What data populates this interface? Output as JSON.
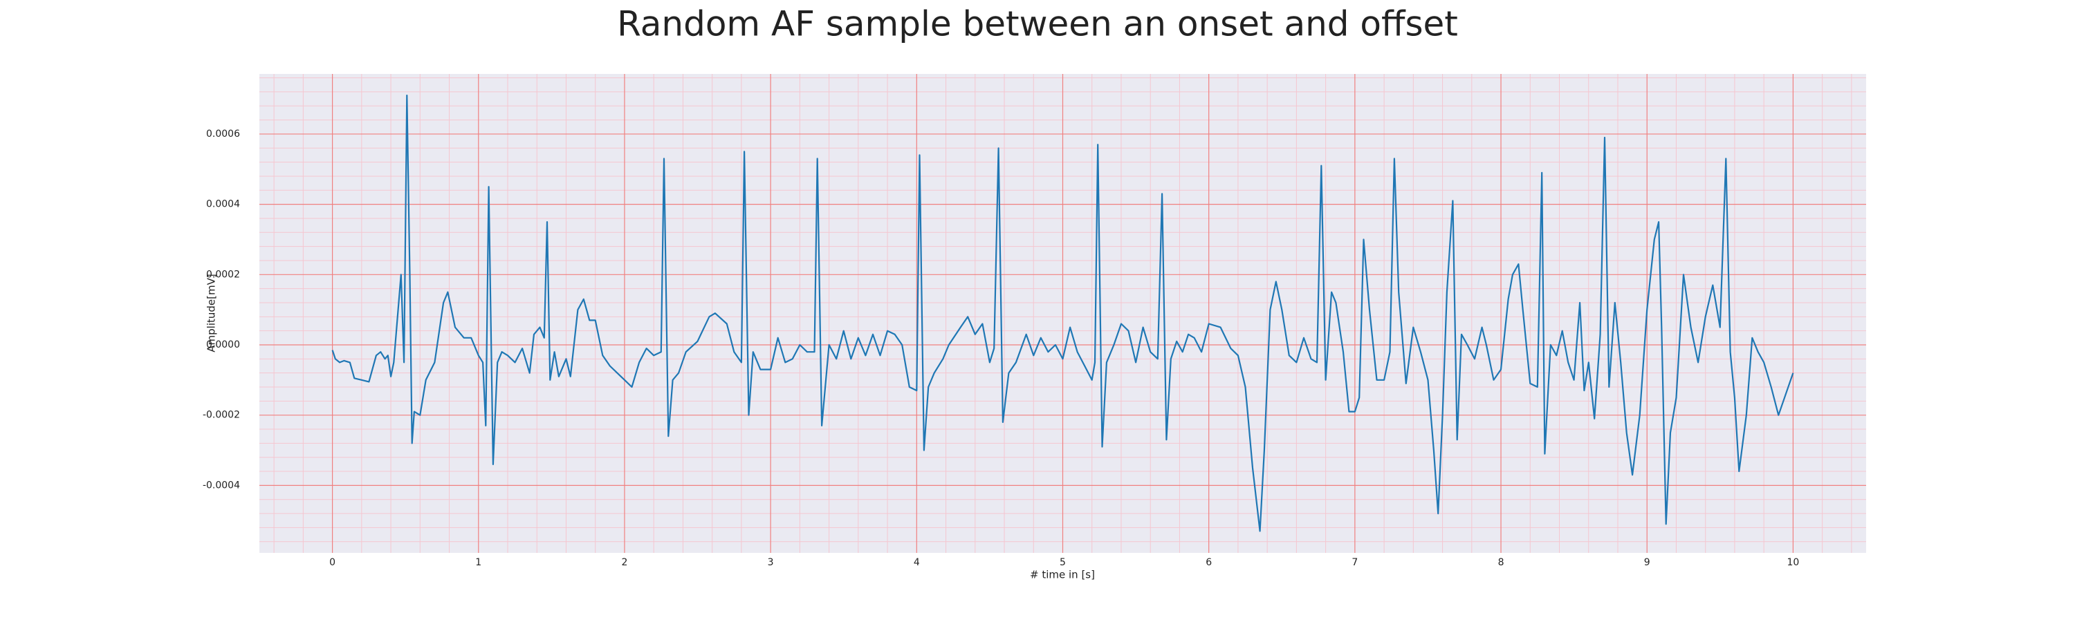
{
  "chart_data": {
    "type": "line",
    "title": "Random AF sample between an onset and offset",
    "xlabel": "# time in [s]",
    "ylabel": "Amplitude[mV]",
    "x": [
      0,
      0.02,
      0.05,
      0.08,
      0.12,
      0.15,
      0.2,
      0.25,
      0.3,
      0.33,
      0.36,
      0.38,
      0.4,
      0.42,
      0.45,
      0.47,
      0.49,
      0.51,
      0.53,
      0.545,
      0.56,
      0.6,
      0.64,
      0.7,
      0.76,
      0.79,
      0.84,
      0.9,
      0.95,
      1.0,
      1.03,
      1.05,
      1.07,
      1.1,
      1.13,
      1.16,
      1.2,
      1.25,
      1.3,
      1.35,
      1.38,
      1.42,
      1.45,
      1.47,
      1.49,
      1.52,
      1.55,
      1.6,
      1.63,
      1.68,
      1.72,
      1.76,
      1.8,
      1.85,
      1.9,
      1.95,
      2.0,
      2.05,
      2.1,
      2.15,
      2.2,
      2.25,
      2.27,
      2.3,
      2.33,
      2.37,
      2.42,
      2.5,
      2.58,
      2.62,
      2.7,
      2.75,
      2.8,
      2.82,
      2.85,
      2.88,
      2.93,
      3.0,
      3.05,
      3.1,
      3.15,
      3.2,
      3.25,
      3.3,
      3.32,
      3.35,
      3.4,
      3.45,
      3.5,
      3.55,
      3.6,
      3.65,
      3.7,
      3.75,
      3.8,
      3.85,
      3.9,
      3.95,
      4.0,
      4.02,
      4.05,
      4.08,
      4.12,
      4.18,
      4.22,
      4.3,
      4.35,
      4.4,
      4.45,
      4.5,
      4.53,
      4.56,
      4.59,
      4.63,
      4.68,
      4.75,
      4.8,
      4.85,
      4.9,
      4.95,
      5.0,
      5.05,
      5.1,
      5.15,
      5.2,
      5.22,
      5.24,
      5.27,
      5.3,
      5.35,
      5.4,
      5.45,
      5.5,
      5.55,
      5.6,
      5.65,
      5.68,
      5.71,
      5.74,
      5.78,
      5.82,
      5.86,
      5.9,
      5.95,
      6.0,
      6.08,
      6.15,
      6.2,
      6.25,
      6.3,
      6.35,
      6.38,
      6.42,
      6.46,
      6.5,
      6.55,
      6.6,
      6.65,
      6.7,
      6.74,
      6.77,
      6.8,
      6.84,
      6.87,
      6.92,
      6.96,
      7.0,
      7.03,
      7.06,
      7.1,
      7.15,
      7.2,
      7.24,
      7.27,
      7.3,
      7.35,
      7.4,
      7.45,
      7.5,
      7.54,
      7.57,
      7.6,
      7.63,
      7.67,
      7.7,
      7.73,
      7.77,
      7.82,
      7.87,
      7.9,
      7.95,
      8.0,
      8.05,
      8.08,
      8.12,
      8.15,
      8.2,
      8.25,
      8.28,
      8.3,
      8.34,
      8.38,
      8.42,
      8.46,
      8.5,
      8.54,
      8.57,
      8.6,
      8.64,
      8.68,
      8.71,
      8.74,
      8.78,
      8.82,
      8.86,
      8.9,
      8.95,
      9.0,
      9.05,
      9.08,
      9.1,
      9.13,
      9.16,
      9.2,
      9.25,
      9.3,
      9.35,
      9.4,
      9.45,
      9.5,
      9.54,
      9.57,
      9.6,
      9.63,
      9.68,
      9.72,
      9.76,
      9.8,
      9.85,
      9.9,
      10.0
    ],
    "series": [
      {
        "color": "#1f77b4",
        "values": [
          -1.5e-05,
          -4e-05,
          -5e-05,
          -4.5e-05,
          -5e-05,
          -9.5e-05,
          -0.0001,
          -0.000105,
          -3e-05,
          -2e-05,
          -4e-05,
          -3e-05,
          -9e-05,
          -5e-05,
          0.0001,
          0.0002,
          -5e-05,
          0.00071,
          0.0002,
          -0.00028,
          -0.00019,
          -0.0002,
          -0.0001,
          -5e-05,
          0.00012,
          0.00015,
          5e-05,
          2e-05,
          2e-05,
          -3e-05,
          -5e-05,
          -0.00023,
          0.00045,
          -0.00034,
          -5e-05,
          -2e-05,
          -3e-05,
          -5e-05,
          -1e-05,
          -8e-05,
          3e-05,
          5e-05,
          2e-05,
          0.00035,
          -0.0001,
          -2e-05,
          -9e-05,
          -4e-05,
          -9e-05,
          0.0001,
          0.00013,
          7e-05,
          7e-05,
          -3e-05,
          -6e-05,
          -8e-05,
          -0.0001,
          -0.00012,
          -5e-05,
          -1e-05,
          -3e-05,
          -2e-05,
          0.00053,
          -0.00026,
          -0.0001,
          -8e-05,
          -2e-05,
          1e-05,
          8e-05,
          9e-05,
          6e-05,
          -2e-05,
          -5e-05,
          0.00055,
          -0.0002,
          -2e-05,
          -7e-05,
          -7e-05,
          2e-05,
          -5e-05,
          -4e-05,
          0,
          -2e-05,
          -2e-05,
          0.00053,
          -0.00023,
          0,
          -4e-05,
          4e-05,
          -4e-05,
          2e-05,
          -3e-05,
          3e-05,
          -3e-05,
          4e-05,
          3e-05,
          0,
          -0.00012,
          -0.00013,
          0.00054,
          -0.0003,
          -0.00012,
          -8e-05,
          -4e-05,
          0,
          5e-05,
          8e-05,
          3e-05,
          6e-05,
          -5e-05,
          -1e-05,
          0.00056,
          -0.00022,
          -8e-05,
          -5e-05,
          3e-05,
          -3e-05,
          2e-05,
          -2e-05,
          0,
          -4e-05,
          5e-05,
          -2e-05,
          -6e-05,
          -0.0001,
          -5e-05,
          0.00057,
          -0.00029,
          -5e-05,
          0,
          6e-05,
          4e-05,
          -5e-05,
          5e-05,
          -2e-05,
          -4e-05,
          0.00043,
          -0.00027,
          -4e-05,
          1e-05,
          -2e-05,
          3e-05,
          2e-05,
          -2e-05,
          6e-05,
          5e-05,
          -1e-05,
          -3e-05,
          -0.00012,
          -0.00035,
          -0.00053,
          -0.0003,
          0.0001,
          0.00018,
          0.0001,
          -3e-05,
          -5e-05,
          2e-05,
          -4e-05,
          -5e-05,
          0.00051,
          -0.0001,
          0.00015,
          0.00012,
          -2e-05,
          -0.00019,
          -0.00019,
          -0.00015,
          0.0003,
          0.0001,
          -0.0001,
          -0.0001,
          -2e-05,
          0.00053,
          0.00015,
          -0.00011,
          5e-05,
          -2e-05,
          -0.0001,
          -0.0003,
          -0.00048,
          -0.0002,
          0.00015,
          0.00041,
          -0.00027,
          3e-05,
          0,
          -4e-05,
          5e-05,
          0,
          -0.0001,
          -7e-05,
          0.00013,
          0.0002,
          0.00023,
          0.0001,
          -0.00011,
          -0.00012,
          0.00049,
          -0.00031,
          0,
          -3e-05,
          4e-05,
          -5e-05,
          -0.0001,
          0.00012,
          -0.00013,
          -5e-05,
          -0.00021,
          3e-05,
          0.00059,
          -0.00012,
          0.00012,
          -5e-05,
          -0.00025,
          -0.00037,
          -0.0002,
          0.0001,
          0.0003,
          0.00035,
          5e-05,
          -0.00051,
          -0.00025,
          -0.00015,
          0.0002,
          5e-05,
          -5e-05,
          8e-05,
          0.00017,
          5e-05,
          0.00053,
          -2e-05,
          -0.00015,
          -0.00036,
          -0.0002,
          2e-05,
          -2e-05,
          -5e-05,
          -0.00012,
          -0.0002,
          -8e-05
        ]
      }
    ],
    "xlim": [
      -0.5,
      10.5
    ],
    "ylim": [
      -0.000592,
      0.000771
    ],
    "xticks": [
      0,
      1,
      2,
      3,
      4,
      5,
      6,
      7,
      8,
      9,
      10
    ],
    "yticks": [
      {
        "value": -0.0004,
        "label": "-0.0004"
      },
      {
        "value": -0.0002,
        "label": "-0.0002"
      },
      {
        "value": 0,
        "label": "0.0000"
      },
      {
        "value": 0.0002,
        "label": "0.0002"
      },
      {
        "value": 0.0004,
        "label": "0.0004"
      },
      {
        "value": 0.0006,
        "label": "0.0006"
      }
    ],
    "grid": true,
    "grid_color": "#f08080",
    "minor_grid": true,
    "minor_grid_color": "#f5c6d0",
    "background": "#eaeaf2"
  }
}
